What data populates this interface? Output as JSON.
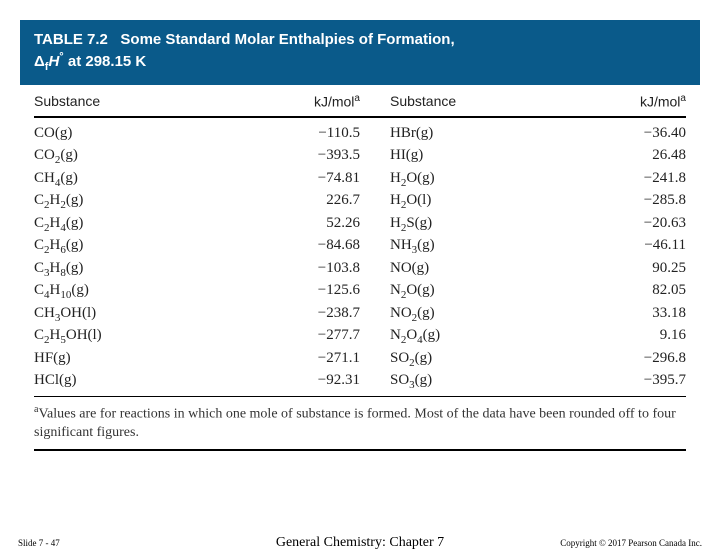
{
  "header": {
    "title_prefix": "TABLE 7.2",
    "title_rest": "Some Standard Molar Enthalpies of Formation,",
    "delta_line": "Δ",
    "delta_sub": "f",
    "delta_var": "H",
    "delta_sup": "°",
    "delta_rest": " at 298.15 K"
  },
  "col_headers": {
    "substance": "Substance",
    "value": "kJ/mol",
    "value_sup": "a"
  },
  "rows_left": [
    {
      "formula": "CO(g)",
      "value": "−110.5"
    },
    {
      "formula": "CO<sub>2</sub>(g)",
      "value": "−393.5"
    },
    {
      "formula": "CH<sub>4</sub>(g)",
      "value": "−74.81"
    },
    {
      "formula": "C<sub>2</sub>H<sub>2</sub>(g)",
      "value": "226.7"
    },
    {
      "formula": "C<sub>2</sub>H<sub>4</sub>(g)",
      "value": "52.26"
    },
    {
      "formula": "C<sub>2</sub>H<sub>6</sub>(g)",
      "value": "−84.68"
    },
    {
      "formula": "C<sub>3</sub>H<sub>8</sub>(g)",
      "value": "−103.8"
    },
    {
      "formula": "C<sub>4</sub>H<sub>10</sub>(g)",
      "value": "−125.6"
    },
    {
      "formula": "CH<sub>3</sub>OH(l)",
      "value": "−238.7"
    },
    {
      "formula": "C<sub>2</sub>H<sub>5</sub>OH(l)",
      "value": "−277.7"
    },
    {
      "formula": "HF(g)",
      "value": "−271.1"
    },
    {
      "formula": "HCl(g)",
      "value": "−92.31"
    }
  ],
  "rows_right": [
    {
      "formula": "HBr(g)",
      "value": "−36.40"
    },
    {
      "formula": "HI(g)",
      "value": "26.48"
    },
    {
      "formula": "H<sub>2</sub>O(g)",
      "value": "−241.8"
    },
    {
      "formula": "H<sub>2</sub>O(l)",
      "value": "−285.8"
    },
    {
      "formula": "H<sub>2</sub>S(g)",
      "value": "−20.63"
    },
    {
      "formula": "NH<sub>3</sub>(g)",
      "value": "−46.11"
    },
    {
      "formula": "NO(g)",
      "value": "90.25"
    },
    {
      "formula": "N<sub>2</sub>O(g)",
      "value": "82.05"
    },
    {
      "formula": "NO<sub>2</sub>(g)",
      "value": "33.18"
    },
    {
      "formula": "N<sub>2</sub>O<sub>4</sub>(g)",
      "value": "9.16"
    },
    {
      "formula": "SO<sub>2</sub>(g)",
      "value": "−296.8"
    },
    {
      "formula": "SO<sub>3</sub>(g)",
      "value": "−395.7"
    }
  ],
  "footnote": {
    "sup": "a",
    "text": "Values are for reactions in which one mole of substance is formed. Most of the data have been rounded off to four significant figures."
  },
  "footer": {
    "left": "Slide 7 - 47",
    "center": "General Chemistry: Chapter 7",
    "right": "Copyright © 2017 Pearson Canada Inc."
  }
}
